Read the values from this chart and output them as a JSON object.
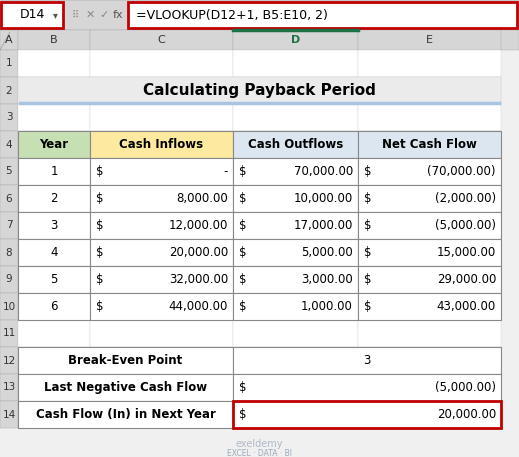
{
  "title": "Calculating Payback Period",
  "formula_bar_cell": "D14",
  "formula_bar_text": "=VLOOKUP(D12+1, B5:E10, 2)",
  "col_letters": [
    "A",
    "B",
    "C",
    "D",
    "E"
  ],
  "main_table_headers": [
    "Year",
    "Cash Inflows",
    "Cash Outflows",
    "Net Cash Flow"
  ],
  "main_table_header_colors": [
    "#c6e0b4",
    "#fde9a0",
    "#dce6f1",
    "#dce6f1"
  ],
  "main_table_rows": [
    [
      "1",
      "$",
      "-",
      "$",
      "70,000.00",
      "$",
      "(70,000.00)"
    ],
    [
      "2",
      "$",
      "8,000.00",
      "$",
      "10,000.00",
      "$",
      "(2,000.00)"
    ],
    [
      "3",
      "$",
      "12,000.00",
      "$",
      "17,000.00",
      "$",
      "(5,000.00)"
    ],
    [
      "4",
      "$",
      "20,000.00",
      "$",
      "5,000.00",
      "$",
      "15,000.00"
    ],
    [
      "5",
      "$",
      "32,000.00",
      "$",
      "3,000.00",
      "$",
      "29,000.00"
    ],
    [
      "6",
      "$",
      "44,000.00",
      "$",
      "1,000.00",
      "$",
      "43,000.00"
    ]
  ],
  "summary_rows": [
    {
      "label": "Break-Even Point",
      "value": "3",
      "has_dollar": false
    },
    {
      "label": "Last Negative Cash Flow",
      "value": "(5,000.00)",
      "has_dollar": true
    },
    {
      "label": "Cash Flow (In) in Next Year",
      "value": "20,000.00",
      "has_dollar": true
    }
  ],
  "highlight_summary_row": 2,
  "title_bg": "#ebebeb",
  "title_underline_color": "#a9c4e0",
  "excel_bg": "#f0f0f0",
  "col_header_bg": "#e0e0e0",
  "col_header_selected": "#1e7145",
  "row_num_bg": "#e0e0e0",
  "cell_bg": "#ffffff",
  "grid_light": "#d0d0d0",
  "grid_dark": "#555555",
  "formula_bar_red": "#c00000",
  "watermark_color": "#b0b8c8",
  "watermark_sub_color": "#9aaabb"
}
